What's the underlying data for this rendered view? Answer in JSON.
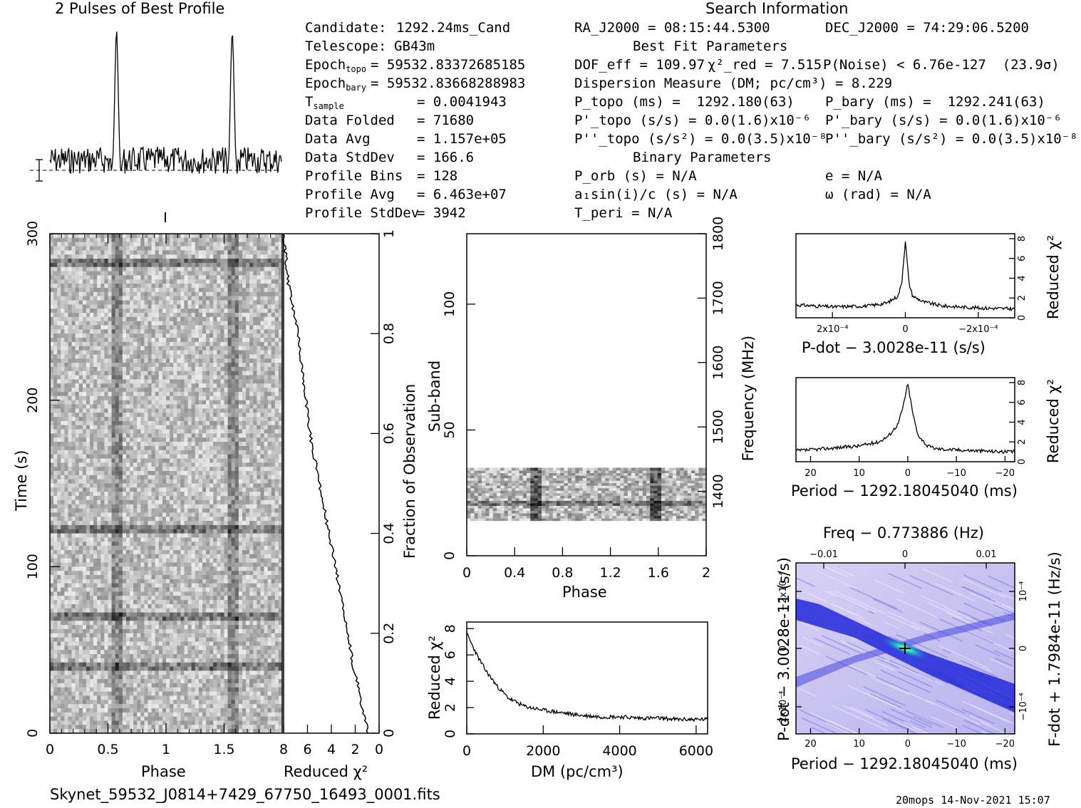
{
  "titles": {
    "profile": "2 Pulses of Best Profile",
    "search": "Search Information",
    "best_fit": "Best Fit Parameters",
    "binary": "Binary Parameters"
  },
  "candidate_info": [
    {
      "label": "Candidate:",
      "value": "1292.24ms_Cand"
    },
    {
      "label": "Telescope:",
      "value": "GB43m"
    },
    {
      "label": "Epoch_topo",
      "value": "= 59532.83372685185"
    },
    {
      "label": "Epoch_bary",
      "value": "= 59532.83668288983"
    },
    {
      "label": "T_sample",
      "value": "= 0.0041943"
    },
    {
      "label": "Data Folded",
      "value": "= 71680"
    },
    {
      "label": "Data Avg",
      "value": "= 1.157e+05"
    },
    {
      "label": "Data StdDev",
      "value": "= 166.6"
    },
    {
      "label": "Profile Bins",
      "value": "= 128"
    },
    {
      "label": "Profile Avg",
      "value": "= 6.463e+07"
    },
    {
      "label": "Profile StdDev",
      "value": "= 3942"
    }
  ],
  "search_info": {
    "ra": "RA_J2000 = 08:15:44.5300",
    "dec": "DEC_J2000 = 74:29:06.5200",
    "dof": "DOF_eff = 109.97",
    "chi2": "χ²_red = 7.515",
    "pnoise": "P(Noise) < 6.76e-127  (23.9σ)",
    "dm": "Dispersion Measure (DM; pc/cm³) = 8.229",
    "p_topo": "P_topo (ms) =  1292.180(63)",
    "pd_topo": "P'_topo (s/s) = 0.0(1.6)x10⁻⁶",
    "pdd_topo": "P''_topo (s/s²) = 0.0(3.5)x10⁻⁸",
    "p_bary": "P_bary (ms) =  1292.241(63)",
    "pd_bary": "P'_bary (s/s) = 0.0(1.6)x10⁻⁶",
    "pdd_bary": "P''_bary (s/s²) = 0.0(3.5)x10⁻⁸",
    "porb": "P_orb (s) = N/A",
    "asini": "a₁sin(i)/c (s) = N/A",
    "tperi": "T_peri = N/A",
    "e": "e = N/A",
    "omega": "ω (rad) = N/A"
  },
  "footer": {
    "filename": "Skynet_59532_J0814+7429_67750_16493_0001.fits",
    "stamp": "20mops 14-Nov-2021 15:07"
  },
  "colors": {
    "ink": "#000000",
    "ppdot_bg": "#c8c4f0",
    "ppdot_dark": "#1a1ad0",
    "ppdot_hot": "#18e0c0"
  },
  "chart_data": [
    {
      "type": "line",
      "id": "profile",
      "title": "2 Pulses of Best Profile",
      "xlabel": "",
      "ylabel": "",
      "xlim": [
        0,
        2
      ],
      "pulse_phases": [
        0.575,
        1.575
      ],
      "description_values": {
        "peak_relative": 1.0,
        "baseline_relative": 0.08
      }
    },
    {
      "type": "heatmap",
      "id": "time_phase",
      "xlabel": "Phase",
      "ylabel": "Time (s)",
      "xlim": [
        0,
        2
      ],
      "ylim": [
        0,
        300
      ],
      "xticks": [
        "0",
        "0.5",
        "1",
        "1.5"
      ],
      "yticks": [
        "0",
        "100",
        "200",
        "300"
      ],
      "dark_stripe_phases": [
        0.575,
        1.575
      ],
      "dark_rows_time": [
        40,
        70,
        123,
        283
      ]
    },
    {
      "type": "line",
      "id": "chi2_vs_fraction",
      "xlabel": "Reduced χ²",
      "ylabel": "Fraction of Observation",
      "xlim": [
        8,
        0
      ],
      "ylim": [
        0,
        1
      ],
      "xticks": [
        "8",
        "6",
        "4",
        "2",
        "0"
      ],
      "yticks": [
        "0",
        "0.2",
        "0.4",
        "0.6",
        "0.8",
        "1"
      ],
      "x": [
        0.9,
        1.4,
        1.8,
        2.2,
        2.3,
        2.6,
        3.0,
        3.4,
        3.8,
        4.2,
        4.6,
        5.0,
        5.4,
        5.8,
        6.3,
        6.8,
        7.2,
        7.6,
        7.8,
        8.0
      ],
      "y": [
        0.0,
        0.05,
        0.1,
        0.13,
        0.15,
        0.2,
        0.25,
        0.3,
        0.35,
        0.4,
        0.45,
        0.5,
        0.55,
        0.6,
        0.7,
        0.8,
        0.85,
        0.9,
        0.95,
        1.0
      ]
    },
    {
      "type": "heatmap",
      "id": "subband_phase",
      "xlabel": "Phase",
      "ylabel": "Sub-band",
      "y2label": "Frequency (MHz)",
      "xlim": [
        0,
        2
      ],
      "ylim": [
        0,
        128
      ],
      "y2lim": [
        1300,
        1800
      ],
      "xticks": [
        "0",
        "0.4",
        "0.8",
        "1.2",
        "1.6",
        "2"
      ],
      "yticks": [
        "0",
        "50",
        "100"
      ],
      "y2ticks": [
        "1400",
        "1500",
        "1600",
        "1700",
        "1800"
      ],
      "data_subband_range": [
        14,
        35
      ],
      "dark_stripe_phases": [
        0.58,
        1.58
      ]
    },
    {
      "type": "line",
      "id": "dm_chi2",
      "xlabel": "DM (pc/cm³)",
      "ylabel": "Reduced χ²",
      "xlim": [
        0,
        6300
      ],
      "ylim": [
        0,
        8.5
      ],
      "xticks": [
        "0",
        "2000",
        "4000",
        "6000"
      ],
      "yticks": [
        "0",
        "2",
        "4",
        "6",
        "8"
      ],
      "x": [
        0,
        100,
        300,
        500,
        800,
        1100,
        1500,
        2000,
        2500,
        3000,
        3500,
        4000,
        4500,
        5000,
        5500,
        6000,
        6300
      ],
      "y": [
        7.6,
        7.0,
        5.8,
        4.8,
        3.6,
        2.7,
        2.1,
        1.8,
        1.6,
        1.4,
        1.3,
        1.3,
        1.2,
        1.2,
        1.1,
        1.1,
        1.1
      ]
    },
    {
      "type": "line",
      "id": "pdot_chi2",
      "xlabel": "P-dot − 3.0028e-11 (s/s)",
      "ylabel": "Reduced χ²",
      "xlim": [
        0.0003,
        -0.0003
      ],
      "ylim": [
        0,
        8.5
      ],
      "xticks": [
        "2x10⁻⁴",
        "0",
        "−2x10⁻⁴"
      ],
      "yticks": [
        "0",
        "2",
        "4",
        "6",
        "8"
      ],
      "x": [
        0.0003,
        0.0002,
        0.0001,
        5e-05,
        2e-05,
        1e-05,
        0,
        -1e-05,
        -2e-05,
        -5e-05,
        -0.0001,
        -0.0002,
        -0.0003
      ],
      "y": [
        1.3,
        1.1,
        1.2,
        1.5,
        2.2,
        3.5,
        7.8,
        3.5,
        2.2,
        1.6,
        1.2,
        1.0,
        0.9
      ]
    },
    {
      "type": "line",
      "id": "period_chi2",
      "xlabel": "Period − 1292.18045040 (ms)",
      "ylabel": "Reduced χ²",
      "xlim": [
        23,
        -22
      ],
      "ylim": [
        0,
        8.5
      ],
      "xticks": [
        "20",
        "10",
        "0",
        "−10",
        "−20"
      ],
      "yticks": [
        "0",
        "2",
        "4",
        "6",
        "8"
      ],
      "x": [
        23,
        20,
        15,
        10,
        6,
        4,
        2,
        1,
        0,
        -1,
        -2,
        -4,
        -6,
        -10,
        -15,
        -20,
        -22
      ],
      "y": [
        1.1,
        1.2,
        1.4,
        1.6,
        2.0,
        2.6,
        3.8,
        5.5,
        7.9,
        5.0,
        2.8,
        1.6,
        1.3,
        1.2,
        1.1,
        1.0,
        1.0
      ]
    },
    {
      "type": "heatmap",
      "id": "p_pdot",
      "title": "Freq − 0.773886 (Hz)",
      "xlabel": "Period − 1292.18045040 (ms)",
      "ylabel": "P-dot − 3.0028e-11 (s/s)",
      "y2label": "F-dot + 1.7984e-11 (Hz/s)",
      "xlim": [
        23,
        -22
      ],
      "ylim": [
        0.00025,
        -0.00025
      ],
      "xticks": [
        "20",
        "10",
        "0",
        "−10",
        "−20"
      ],
      "yticks": [
        "−2x10⁻⁴",
        "0",
        "2x10⁻⁴"
      ],
      "x2ticks": [
        "−0.01",
        "0",
        "0.01"
      ],
      "y2ticks": [
        "10⁻⁴",
        "0",
        "−10⁻⁴"
      ],
      "peak": {
        "period": 0,
        "pdot": 0
      }
    }
  ]
}
